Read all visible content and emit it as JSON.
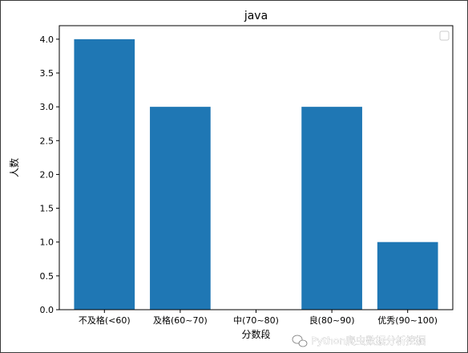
{
  "chart_data": {
    "type": "bar",
    "title": "java",
    "xlabel": "分数段",
    "ylabel": "人数",
    "categories": [
      "不及格(<60)",
      "及格(60~70)",
      "中(70~80)",
      "良(80~90)",
      "优秀(90~100)"
    ],
    "values": [
      4,
      3,
      0,
      3,
      1
    ],
    "ylim": [
      0,
      4.2
    ],
    "yticks": [
      "0.0",
      "0.5",
      "1.0",
      "1.5",
      "2.0",
      "2.5",
      "3.0",
      "3.5",
      "4.0"
    ],
    "bar_color": "#1f77b4",
    "grid": false,
    "legend": "top-right, empty"
  },
  "watermark": {
    "text": "Python爬虫数据分析挖掘"
  }
}
